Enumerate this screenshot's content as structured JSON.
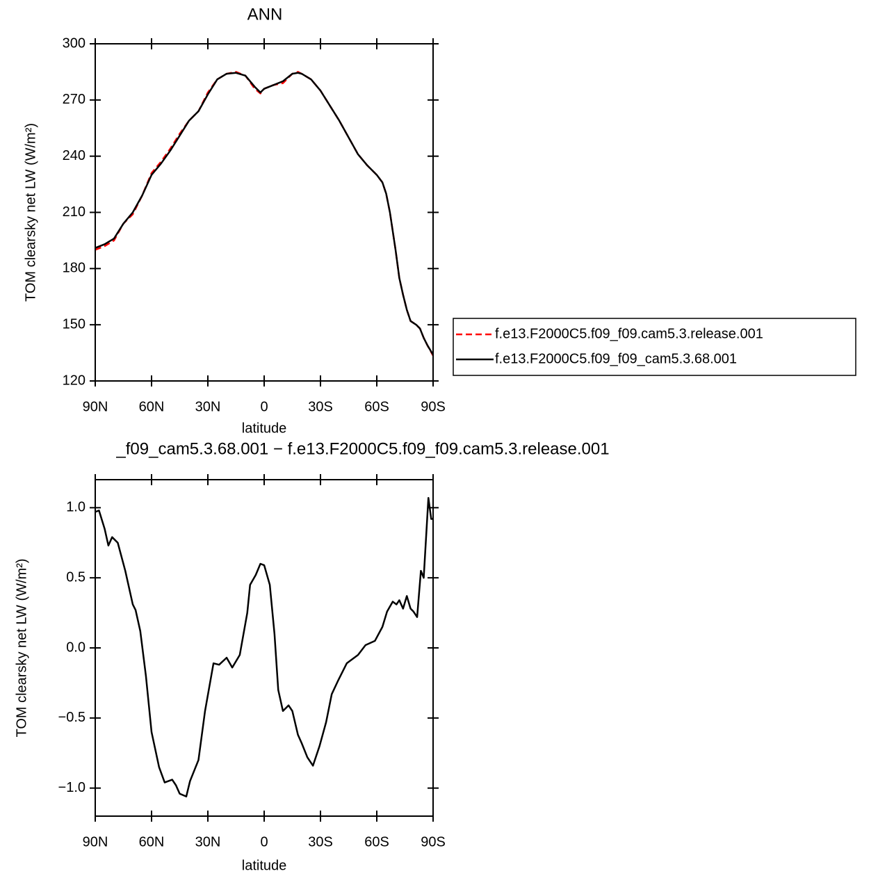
{
  "chart_data": [
    {
      "type": "line",
      "title": "ANN",
      "x_label": "latitude",
      "y_label": "TOM clearsky net LW (W/m²)",
      "x": [
        90,
        85,
        80,
        75,
        70,
        65,
        60,
        55,
        50,
        45,
        40,
        35,
        30,
        25,
        20,
        15,
        10,
        5,
        2,
        0,
        -5,
        -10,
        -15,
        -18,
        -20,
        -25,
        -30,
        -35,
        -40,
        -45,
        -50,
        -55,
        -60,
        -63,
        -65,
        -67,
        -70,
        -72,
        -74,
        -76,
        -78,
        -81,
        -83,
        -85,
        -87,
        -90
      ],
      "series": [
        {
          "name": "f.e13.F2000C5.f09_f09.cam5.3.release.001",
          "color": "#ff0000",
          "line_style": "dashed",
          "values": [
            190,
            192,
            195,
            204,
            209,
            219,
            231,
            237,
            244,
            252,
            259,
            264,
            274,
            281,
            284,
            285,
            283,
            276,
            273.5,
            276,
            278,
            279,
            284,
            285,
            284,
            281,
            275,
            267,
            259,
            250,
            241,
            235,
            230,
            226,
            220,
            210,
            190,
            175,
            166,
            158,
            152,
            150,
            148,
            143,
            139,
            133.5
          ]
        },
        {
          "name": "f.e13.F2000C5.f09_f09_cam5.3.68.001",
          "color": "#000000",
          "line_style": "solid",
          "values": [
            191,
            193,
            196,
            204,
            210,
            219,
            230,
            236,
            243,
            251,
            259,
            264,
            273,
            281,
            284,
            284.5,
            283,
            277,
            274,
            276,
            278,
            280,
            284,
            284.5,
            284,
            281,
            275,
            267,
            259,
            250,
            241,
            235,
            230,
            226,
            220,
            210,
            190,
            175,
            166,
            158,
            152,
            150,
            148,
            143,
            139,
            134
          ]
        }
      ],
      "xlim": [
        90,
        -90
      ],
      "xticks": [
        {
          "value": 90,
          "label": "90N"
        },
        {
          "value": 60,
          "label": "60N"
        },
        {
          "value": 30,
          "label": "30N"
        },
        0,
        {
          "value": -30,
          "label": "30S"
        },
        {
          "value": -60,
          "label": "60S"
        },
        {
          "value": -90,
          "label": "90S"
        }
      ],
      "ylim": [
        120,
        300
      ],
      "yticks": [
        120,
        150,
        180,
        210,
        240,
        270,
        300
      ],
      "legend": "outside-right"
    },
    {
      "type": "line",
      "title": "_f09_cam5.3.68.001 − f.e13.F2000C5.f09_f09.cam5.3.release.001",
      "x_label": "latitude",
      "y_label": "TOM clearsky net LW (W/m²)",
      "x": [
        90,
        88,
        85,
        83,
        81,
        78,
        74,
        70,
        68.5,
        66,
        63,
        60,
        56,
        53,
        49,
        47,
        45,
        41.5,
        39.5,
        35,
        31.5,
        27,
        24,
        20,
        17,
        13,
        9,
        7.5,
        4.5,
        2,
        0,
        -3,
        -5.5,
        -7.5,
        -10,
        -13,
        -15,
        -18,
        -20,
        -23,
        -26,
        -29.5,
        -33,
        -36,
        -39.5,
        -44,
        -50,
        -54,
        -59,
        -63,
        -65.5,
        -68.5,
        -70.5,
        -72,
        -74,
        -76,
        -78,
        -79.5,
        -81.5,
        -83.5,
        -85,
        -87.5,
        -89,
        -90
      ],
      "series": [
        {
          "color": "#000000",
          "line_style": "solid",
          "values": [
            0.97,
            0.98,
            0.85,
            0.73,
            0.79,
            0.75,
            0.55,
            0.31,
            0.27,
            0.12,
            -0.2,
            -0.6,
            -0.85,
            -0.96,
            -0.94,
            -0.98,
            -1.04,
            -1.06,
            -0.95,
            -0.8,
            -0.45,
            -0.11,
            -0.12,
            -0.07,
            -0.14,
            -0.05,
            0.25,
            0.45,
            0.52,
            0.6,
            0.59,
            0.45,
            0.1,
            -0.3,
            -0.45,
            -0.41,
            -0.45,
            -0.62,
            -0.68,
            -0.78,
            -0.84,
            -0.7,
            -0.53,
            -0.33,
            -0.23,
            -0.11,
            -0.05,
            0.02,
            0.05,
            0.15,
            0.26,
            0.33,
            0.31,
            0.34,
            0.28,
            0.37,
            0.28,
            0.26,
            0.22,
            0.55,
            0.5,
            1.07,
            0.92,
            0.92
          ]
        }
      ],
      "xlim": [
        90,
        -90
      ],
      "xticks": [
        {
          "value": 90,
          "label": "90N"
        },
        {
          "value": 60,
          "label": "60N"
        },
        {
          "value": 30,
          "label": "30N"
        },
        0,
        {
          "value": -30,
          "label": "30S"
        },
        {
          "value": -60,
          "label": "60S"
        },
        {
          "value": -90,
          "label": "90S"
        }
      ],
      "ylim": [
        -1.2,
        1.2
      ],
      "yticks": [
        {
          "value": -1,
          "label": "−1.0"
        },
        {
          "value": -0.5,
          "label": "−0.5"
        },
        {
          "value": 0,
          "label": "0.0"
        },
        0.5,
        {
          "value": 1,
          "label": "1.0"
        }
      ]
    }
  ]
}
